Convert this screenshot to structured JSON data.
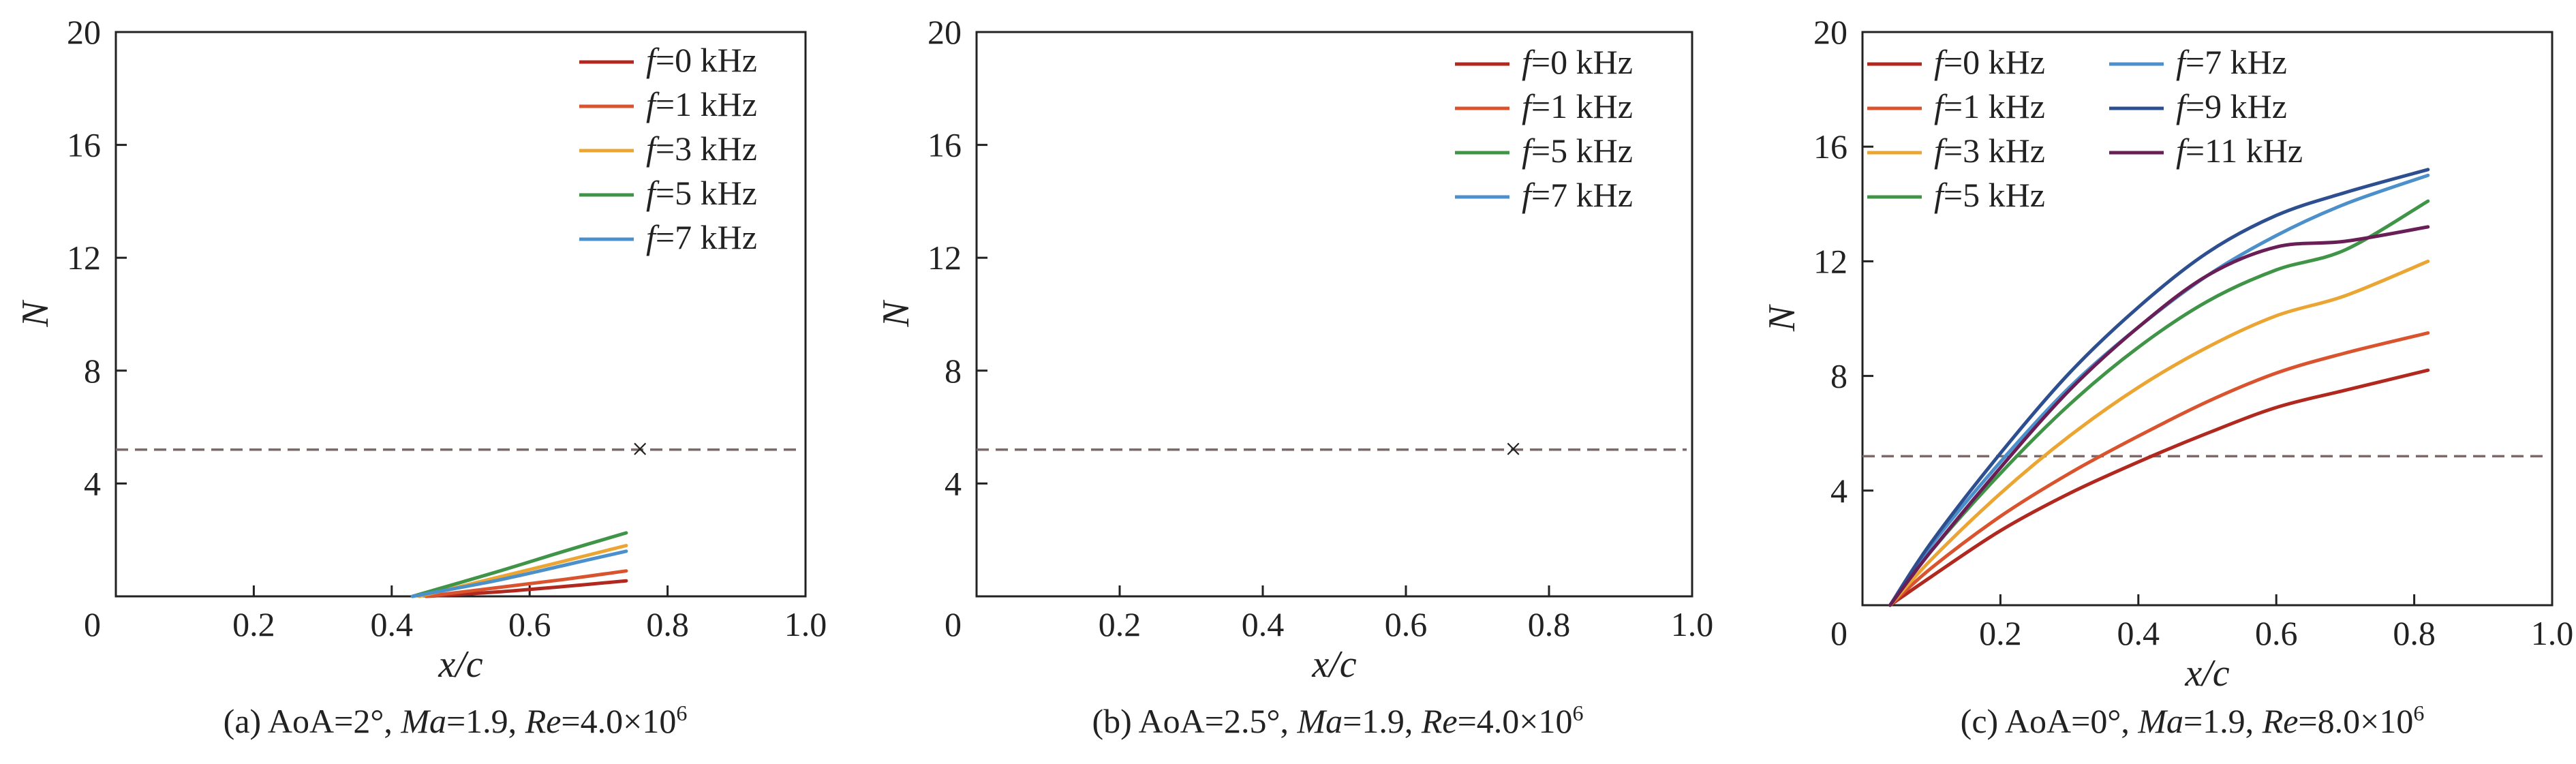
{
  "colors": {
    "f0": "#b0281e",
    "f1": "#d9532e",
    "f3": "#eba532",
    "f5": "#3f9447",
    "f7": "#4b8fcb",
    "f9": "#2e4f8f",
    "f11": "#6a1e56",
    "threshold": "#7a6a6a",
    "marker": "#6b6b6b",
    "axis": "#222222"
  },
  "chart_data": [
    {
      "type": "line",
      "caption": {
        "prefix": "(a) AoA=2°, ",
        "ma_label": "Ma",
        "ma_value": "=1.9, ",
        "re_label": "Re",
        "re_value": "=4.0×10",
        "re_exp": "6"
      },
      "xlabel": "x/c",
      "ylabel": "N",
      "xlim": [
        0,
        1.0
      ],
      "ylim": [
        0,
        20
      ],
      "x_ticks": [
        0.2,
        0.4,
        0.6,
        0.8,
        1.0
      ],
      "x_tick_labels": [
        "0.2",
        "0.4",
        "0.6",
        "0.8",
        "1.0"
      ],
      "y_ticks": [
        4,
        8,
        12,
        16,
        20
      ],
      "y_tick_labels": [
        "4",
        "8",
        "12",
        "16",
        "20"
      ],
      "origin_label": "0",
      "threshold": 5.2,
      "marker": {
        "x": 0.76,
        "y": 5.2,
        "symbol": "×"
      },
      "legend": {
        "placement": "top-right",
        "columns": 1
      },
      "series": [
        {
          "name": "f=0 kHz",
          "color_key": "f0",
          "x": [
            0.45,
            0.55,
            0.65,
            0.74
          ],
          "y": [
            0.0,
            0.15,
            0.35,
            0.55
          ]
        },
        {
          "name": "f=1 kHz",
          "color_key": "f1",
          "x": [
            0.45,
            0.55,
            0.65,
            0.74
          ],
          "y": [
            0.0,
            0.3,
            0.6,
            0.9
          ]
        },
        {
          "name": "f=3 kHz",
          "color_key": "f3",
          "x": [
            0.44,
            0.55,
            0.65,
            0.74
          ],
          "y": [
            0.0,
            0.65,
            1.25,
            1.8
          ]
        },
        {
          "name": "f=5 kHz",
          "color_key": "f5",
          "x": [
            0.43,
            0.55,
            0.65,
            0.74
          ],
          "y": [
            0.0,
            0.85,
            1.6,
            2.25
          ]
        },
        {
          "name": "f=7 kHz",
          "color_key": "f7",
          "x": [
            0.43,
            0.55,
            0.65,
            0.74
          ],
          "y": [
            0.0,
            0.55,
            1.1,
            1.6
          ]
        }
      ]
    },
    {
      "type": "line",
      "caption": {
        "prefix": "(b) AoA=2.5°, ",
        "ma_label": "Ma",
        "ma_value": "=1.9, ",
        "re_label": "Re",
        "re_value": "=4.0×10",
        "re_exp": "6"
      },
      "xlabel": "x/c",
      "ylabel": "N",
      "xlim": [
        0,
        1.0
      ],
      "ylim": [
        0,
        20
      ],
      "x_ticks": [
        0.2,
        0.4,
        0.6,
        0.8,
        1.0
      ],
      "x_tick_labels": [
        "0.2",
        "0.4",
        "0.6",
        "0.8",
        "1.0"
      ],
      "y_ticks": [
        4,
        8,
        12,
        16,
        20
      ],
      "y_tick_labels": [
        "4",
        "8",
        "12",
        "16",
        "20"
      ],
      "origin_label": "0",
      "threshold": 5.2,
      "marker": {
        "x": 0.75,
        "y": 5.2,
        "symbol": "×"
      },
      "legend": {
        "placement": "top-right",
        "columns": 1
      },
      "series": [
        {
          "name": "f=0 kHz",
          "color_key": "f0",
          "x": [],
          "y": []
        },
        {
          "name": "f=1 kHz",
          "color_key": "f1",
          "x": [],
          "y": []
        },
        {
          "name": "f=5 kHz",
          "color_key": "f5",
          "x": [],
          "y": []
        },
        {
          "name": "f=7 kHz",
          "color_key": "f7",
          "x": [],
          "y": []
        }
      ]
    },
    {
      "type": "line",
      "caption": {
        "prefix": "(c) AoA=0°, ",
        "ma_label": "Ma",
        "ma_value": "=1.9, ",
        "re_label": "Re",
        "re_value": "=8.0×10",
        "re_exp": "6"
      },
      "xlabel": "x/c",
      "ylabel": "N",
      "xlim": [
        0,
        1.0
      ],
      "ylim": [
        0,
        20
      ],
      "x_ticks": [
        0.2,
        0.4,
        0.6,
        0.8,
        1.0
      ],
      "x_tick_labels": [
        "0.2",
        "0.4",
        "0.6",
        "0.8",
        "1.0"
      ],
      "y_ticks": [
        4,
        8,
        12,
        16,
        20
      ],
      "y_tick_labels": [
        "4",
        "8",
        "12",
        "16",
        "20"
      ],
      "origin_label": "0",
      "threshold": 5.2,
      "marker": null,
      "legend": {
        "placement": "top-left",
        "columns": 2
      },
      "series": [
        {
          "name": "f=0 kHz",
          "color_key": "f0",
          "x": [
            0.04,
            0.1,
            0.2,
            0.3,
            0.4,
            0.5,
            0.6,
            0.7,
            0.82
          ],
          "y": [
            0.0,
            1.0,
            2.6,
            3.9,
            5.0,
            6.0,
            6.9,
            7.5,
            8.2
          ]
        },
        {
          "name": "f=1 kHz",
          "color_key": "f1",
          "x": [
            0.04,
            0.1,
            0.2,
            0.3,
            0.4,
            0.5,
            0.6,
            0.7,
            0.82
          ],
          "y": [
            0.0,
            1.3,
            3.1,
            4.6,
            5.9,
            7.1,
            8.1,
            8.8,
            9.5
          ]
        },
        {
          "name": "f=3 kHz",
          "color_key": "f3",
          "x": [
            0.04,
            0.1,
            0.2,
            0.3,
            0.4,
            0.5,
            0.6,
            0.7,
            0.82
          ],
          "y": [
            0.0,
            1.6,
            3.9,
            5.9,
            7.6,
            9.0,
            10.1,
            10.8,
            12.0
          ]
        },
        {
          "name": "f=5 kHz",
          "color_key": "f5",
          "x": [
            0.04,
            0.1,
            0.2,
            0.3,
            0.4,
            0.5,
            0.6,
            0.7,
            0.82
          ],
          "y": [
            0.0,
            1.9,
            4.6,
            7.0,
            9.0,
            10.6,
            11.7,
            12.4,
            14.1
          ]
        },
        {
          "name": "f=7 kHz",
          "color_key": "f7",
          "x": [
            0.04,
            0.1,
            0.2,
            0.3,
            0.4,
            0.5,
            0.6,
            0.7,
            0.82
          ],
          "y": [
            0.0,
            2.1,
            5.0,
            7.6,
            9.7,
            11.5,
            12.9,
            14.0,
            15.0
          ]
        },
        {
          "name": "f=9 kHz",
          "color_key": "f9",
          "x": [
            0.04,
            0.1,
            0.2,
            0.3,
            0.4,
            0.5,
            0.6,
            0.7,
            0.82
          ],
          "y": [
            0.0,
            2.2,
            5.3,
            8.1,
            10.4,
            12.3,
            13.6,
            14.4,
            15.2
          ]
        },
        {
          "name": "f=11 kHz",
          "color_key": "f11",
          "x": [
            0.04,
            0.1,
            0.2,
            0.3,
            0.4,
            0.5,
            0.6,
            0.7,
            0.82
          ],
          "y": [
            0.0,
            1.9,
            4.8,
            7.5,
            9.7,
            11.5,
            12.5,
            12.7,
            13.2
          ]
        }
      ]
    }
  ]
}
